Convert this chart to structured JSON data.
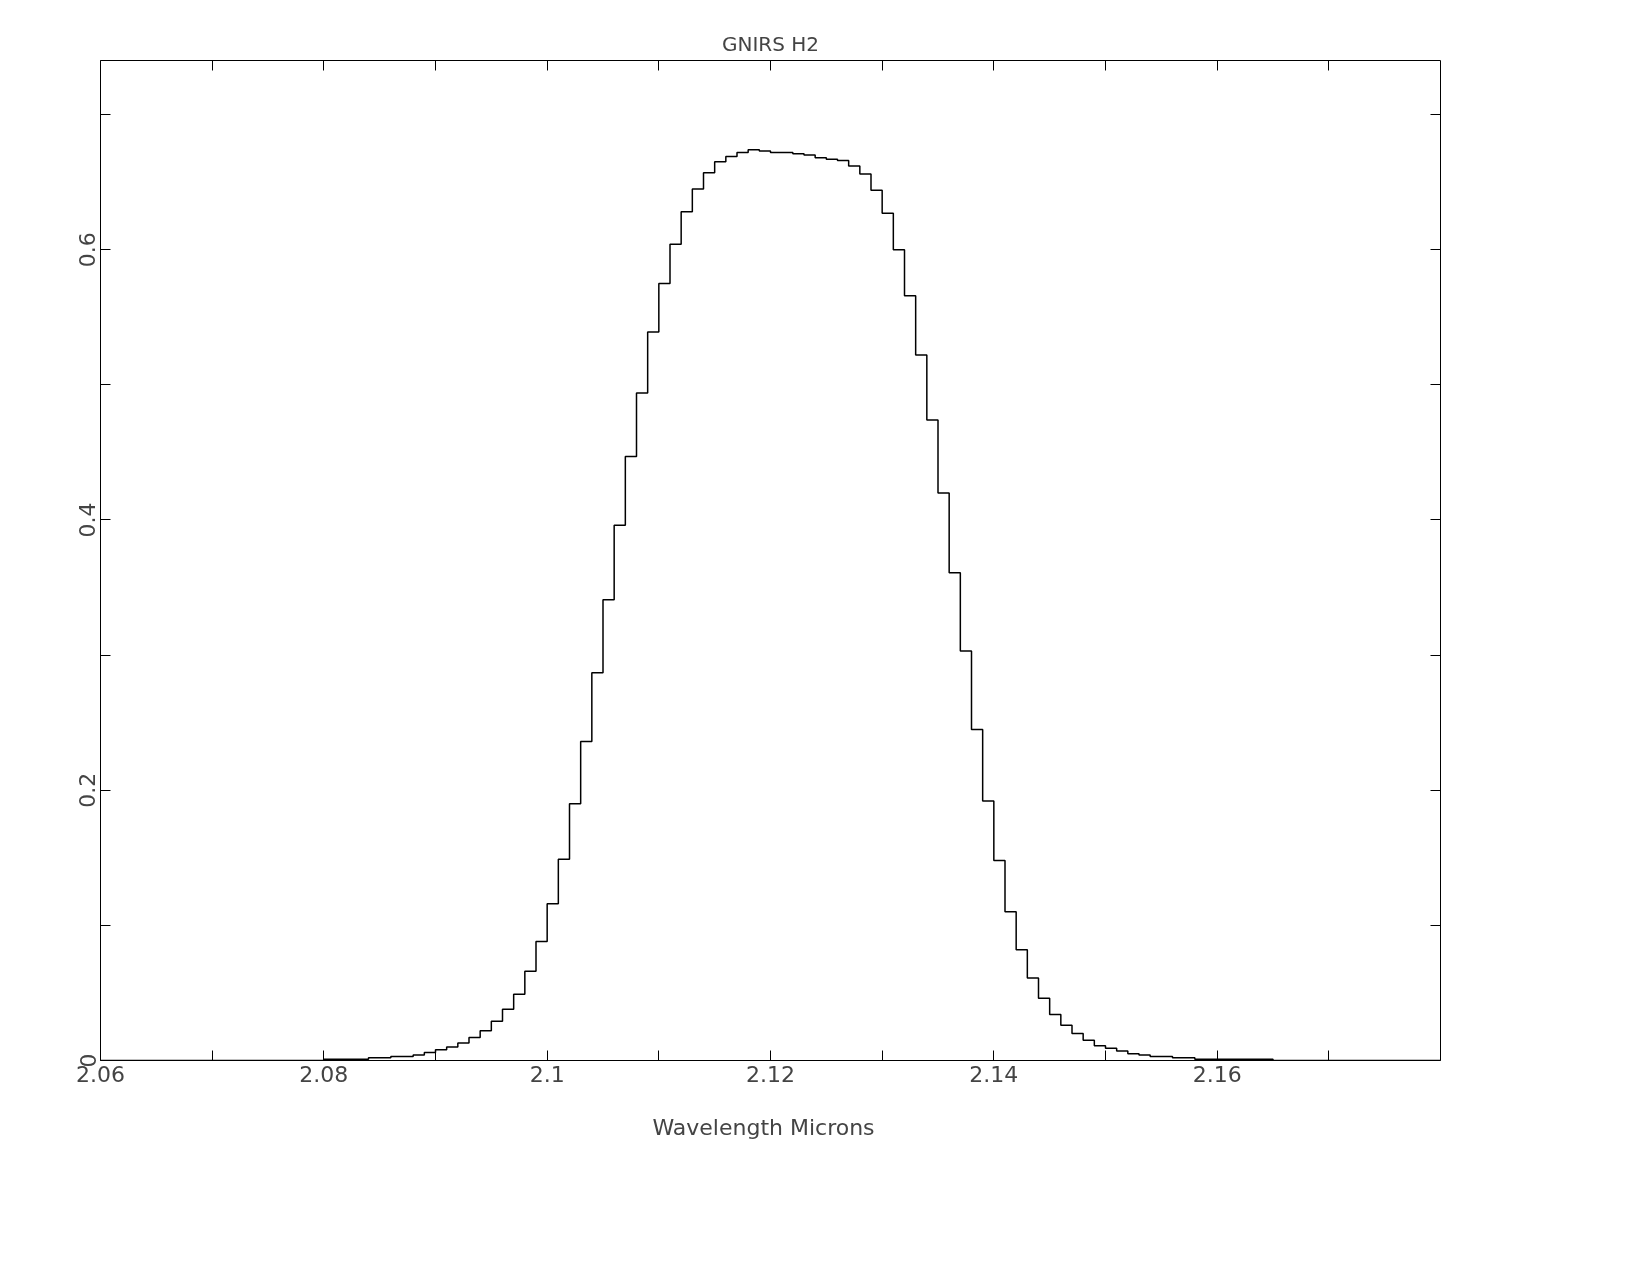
{
  "chart_data": {
    "type": "step",
    "title": "GNIRS H2",
    "xlabel": "Wavelength   Microns",
    "xlim": [
      2.06,
      2.18
    ],
    "ylim": [
      0,
      0.74
    ],
    "xticks": [
      2.06,
      {
        "value": 2.07,
        "label": null
      },
      2.08,
      {
        "value": 2.09,
        "label": null
      },
      2.1,
      {
        "value": 2.11,
        "label": null
      },
      2.12,
      {
        "value": 2.13,
        "label": null
      },
      2.14,
      {
        "value": 2.15,
        "label": null
      },
      2.16,
      {
        "value": 2.17,
        "label": null
      }
    ],
    "yticks": [
      0,
      {
        "value": 0.1,
        "label": null
      },
      0.2,
      {
        "value": 0.3,
        "label": null
      },
      0.4,
      {
        "value": 0.5,
        "label": null
      },
      0.6,
      {
        "value": 0.7,
        "label": null
      }
    ],
    "grid": false,
    "marker": "none",
    "line_style": "solid",
    "series": [
      {
        "color": "#000000",
        "x": [
          2.06,
          2.08,
          2.081,
          2.082,
          2.083,
          2.084,
          2.085,
          2.086,
          2.087,
          2.088,
          2.089,
          2.09,
          2.091,
          2.092,
          2.093,
          2.094,
          2.095,
          2.096,
          2.097,
          2.098,
          2.099,
          2.1,
          2.101,
          2.102,
          2.103,
          2.104,
          2.105,
          2.106,
          2.107,
          2.108,
          2.109,
          2.11,
          2.111,
          2.112,
          2.113,
          2.114,
          2.115,
          2.116,
          2.117,
          2.118,
          2.119,
          2.12,
          2.121,
          2.122,
          2.123,
          2.124,
          2.125,
          2.126,
          2.127,
          2.128,
          2.129,
          2.13,
          2.131,
          2.132,
          2.133,
          2.134,
          2.135,
          2.136,
          2.137,
          2.138,
          2.139,
          2.14,
          2.141,
          2.142,
          2.143,
          2.144,
          2.145,
          2.146,
          2.147,
          2.148,
          2.149,
          2.15,
          2.151,
          2.152,
          2.153,
          2.154,
          2.155,
          2.156,
          2.157,
          2.158,
          2.16,
          2.165,
          2.18
        ],
        "values": [
          0,
          0.001,
          0.001,
          0.001,
          0.001,
          0.002,
          0.002,
          0.003,
          0.003,
          0.004,
          0.006,
          0.008,
          0.01,
          0.013,
          0.017,
          0.022,
          0.029,
          0.038,
          0.049,
          0.066,
          0.088,
          0.116,
          0.149,
          0.19,
          0.236,
          0.287,
          0.341,
          0.396,
          0.447,
          0.494,
          0.539,
          0.575,
          0.604,
          0.628,
          0.645,
          0.657,
          0.665,
          0.669,
          0.672,
          0.674,
          0.673,
          0.672,
          0.672,
          0.671,
          0.67,
          0.668,
          0.667,
          0.666,
          0.662,
          0.656,
          0.644,
          0.627,
          0.6,
          0.566,
          0.522,
          0.474,
          0.42,
          0.361,
          0.303,
          0.245,
          0.192,
          0.148,
          0.11,
          0.082,
          0.061,
          0.046,
          0.034,
          0.026,
          0.02,
          0.015,
          0.011,
          0.009,
          0.007,
          0.005,
          0.004,
          0.003,
          0.003,
          0.002,
          0.002,
          0.001,
          0.001,
          0,
          0
        ]
      }
    ]
  }
}
